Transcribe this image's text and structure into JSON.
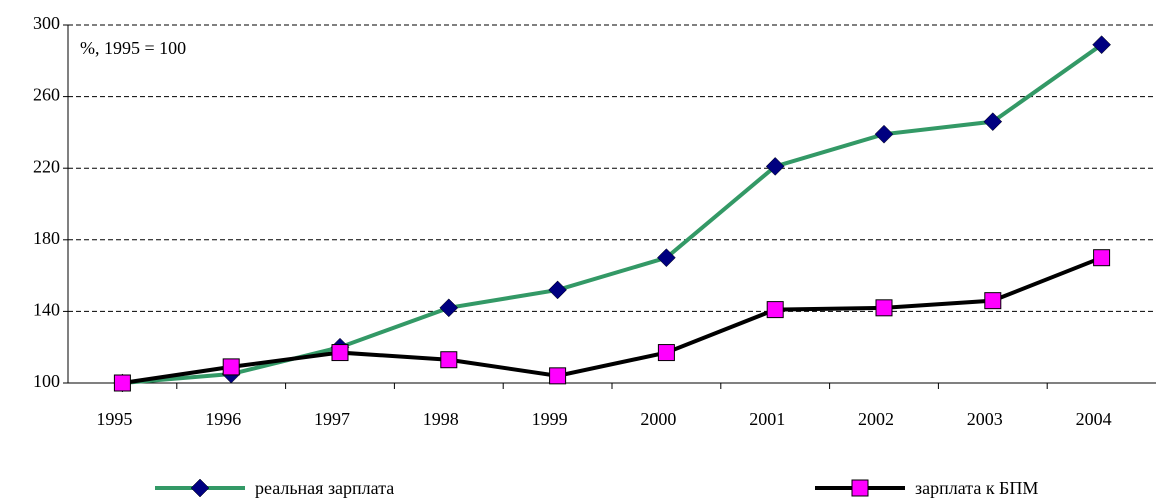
{
  "chart_data": {
    "type": "line",
    "annotation": "%, 1995 = 100",
    "categories": [
      "1995",
      "1996",
      "1997",
      "1998",
      "1999",
      "2000",
      "2001",
      "2002",
      "2003",
      "2004"
    ],
    "series": [
      {
        "name": "реальная зарплата",
        "color": "#339966",
        "marker": "diamond",
        "marker_color": "#000080",
        "values": [
          100,
          105,
          120,
          142,
          152,
          170,
          221,
          239,
          246,
          289
        ]
      },
      {
        "name": "зарплата к БПМ",
        "color": "#000000",
        "marker": "square",
        "marker_color": "#ff00ff",
        "values": [
          100,
          109,
          117,
          113,
          104,
          117,
          141,
          142,
          146,
          170
        ]
      }
    ],
    "ylim": [
      100,
      300
    ],
    "yticks": [
      100,
      140,
      180,
      220,
      260,
      300
    ],
    "grid": true
  }
}
